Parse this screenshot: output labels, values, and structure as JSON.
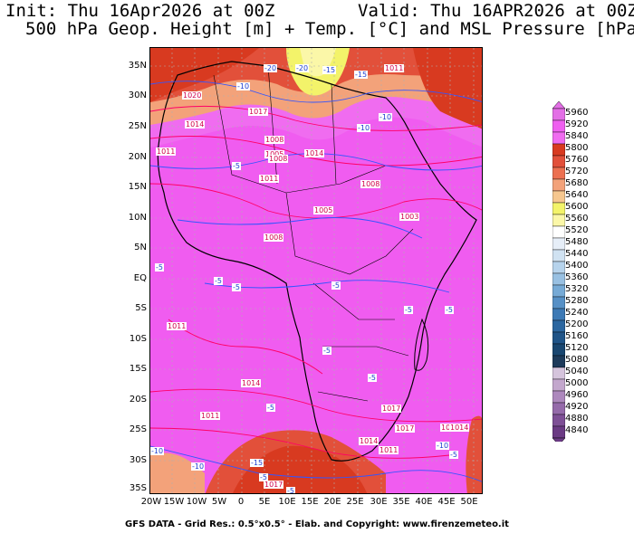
{
  "header": {
    "init": "Init: Thu 16Apr2026 at 00Z",
    "valid": "Valid: Thu 16APR2026 at 00Z",
    "title": "500 hPa Geop. Height [m] + Temp. [°C] and MSL Pressure [hPa]"
  },
  "footer": "GFS DATA - Grid Res.: 0.5°x0.5° - Elab. and Copyright: www.firenzemeteo.it",
  "map": {
    "region": "Africa",
    "lat_labels": [
      "35N",
      "30N",
      "25N",
      "20N",
      "15N",
      "10N",
      "5N",
      "EQ",
      "5S",
      "10S",
      "15S",
      "20S",
      "25S",
      "30S",
      "35S"
    ],
    "lon_labels": [
      "20W",
      "15W",
      "10W",
      "5W",
      "0",
      "5E",
      "10E",
      "15E",
      "20E",
      "25E",
      "30E",
      "35E",
      "40E",
      "45E",
      "50E"
    ],
    "pressure_labels": [
      "1011",
      "1020",
      "1017",
      "1014",
      "1011",
      "1008",
      "1005",
      "1008",
      "1014",
      "1011",
      "1008",
      "1005",
      "1008",
      "1003",
      "1011",
      "1014",
      "1017",
      "1011",
      "1014",
      "1017",
      "1014",
      "1011",
      "1017",
      "1014"
    ],
    "temperature_labels": [
      "-20",
      "-20",
      "-15",
      "-10",
      "-15",
      "-10",
      "-10",
      "-5",
      "-5",
      "-5",
      "-5",
      "-5",
      "-5",
      "-5",
      "-5",
      "-5",
      "-5",
      "-5",
      "-5",
      "-10",
      "-10",
      "-15",
      "-10",
      "-5"
    ]
  },
  "colorbar": {
    "levels": [
      "5960",
      "5920",
      "5840",
      "5800",
      "5760",
      "5720",
      "5680",
      "5640",
      "5600",
      "5560",
      "5520",
      "5480",
      "5440",
      "5400",
      "5360",
      "5320",
      "5280",
      "5240",
      "5200",
      "5160",
      "5120",
      "5080",
      "5040",
      "5000",
      "4960",
      "4920",
      "4880",
      "4840"
    ],
    "colors": [
      "#e36fe6",
      "#ef5ff0",
      "#f06cf0",
      "#d83a20",
      "#e2503a",
      "#ec7050",
      "#f3a27a",
      "#f6c78f",
      "#f3f36a",
      "#fbf7a8",
      "#ffffff",
      "#e6eef8",
      "#d0e2f2",
      "#b6d3ec",
      "#98c0e2",
      "#76aad6",
      "#5690c6",
      "#3d7ab6",
      "#2b66a0",
      "#1f5488",
      "#194670",
      "#1d3a5a",
      "#d5c4dc",
      "#c3a7cd",
      "#ad88bd",
      "#956aaa",
      "#7e4f96",
      "#6b3a84"
    ]
  },
  "colors": {
    "ocean_fill": "#f05cf0",
    "land_line": "#000000",
    "pressure_line": "#ff0066",
    "temp_line": "#3355ff"
  }
}
